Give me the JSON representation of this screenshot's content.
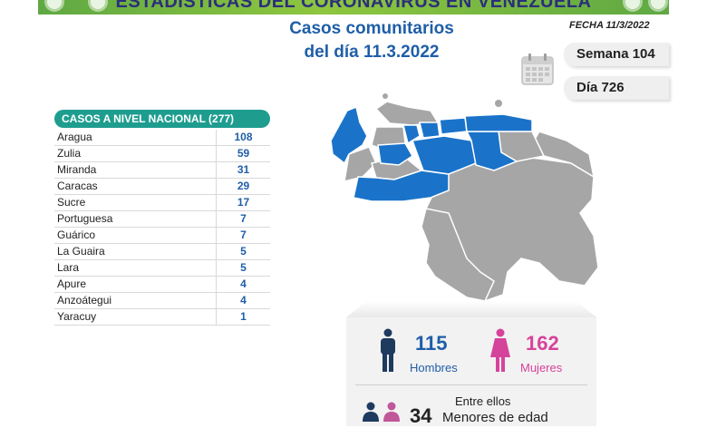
{
  "banner": {
    "title": "ESTADÍSTICAS DEL CORONAVIRUS EN VENEZUELA"
  },
  "header": {
    "title_line1": "Casos comunitarios",
    "title_line2": "del día 11.3.2022",
    "fecha": "FECHA 11/3/2022"
  },
  "badges": {
    "semana": "Semana 104",
    "dia": "Día 726"
  },
  "table": {
    "header": "CASOS A NIVEL NACIONAL  (277)",
    "rows": [
      {
        "name": "Aragua",
        "value": "108"
      },
      {
        "name": "Zulia",
        "value": "59"
      },
      {
        "name": "Miranda",
        "value": "31"
      },
      {
        "name": "Caracas",
        "value": "29"
      },
      {
        "name": "Sucre",
        "value": "17"
      },
      {
        "name": "Portuguesa",
        "value": "7"
      },
      {
        "name": "Guárico",
        "value": "7"
      },
      {
        "name": "La Guaira",
        "value": "5"
      },
      {
        "name": "Lara",
        "value": "5"
      },
      {
        "name": "Apure",
        "value": "4"
      },
      {
        "name": "Anzoátegui",
        "value": "4"
      },
      {
        "name": "Yaracuy",
        "value": "1"
      }
    ]
  },
  "stats": {
    "hombres_count": "115",
    "hombres_label": "Hombres",
    "mujeres_count": "162",
    "mujeres_label": "Mujeres",
    "entre_ellos": "Entre ellos",
    "menores_count": "34",
    "menores_label": "Menores de edad"
  },
  "colors": {
    "primary_blue": "#1f5ea8",
    "teal": "#1e9d8f",
    "pink": "#d6439b",
    "map_blue": "#1a73c9",
    "map_gray": "#a6a6a6"
  }
}
